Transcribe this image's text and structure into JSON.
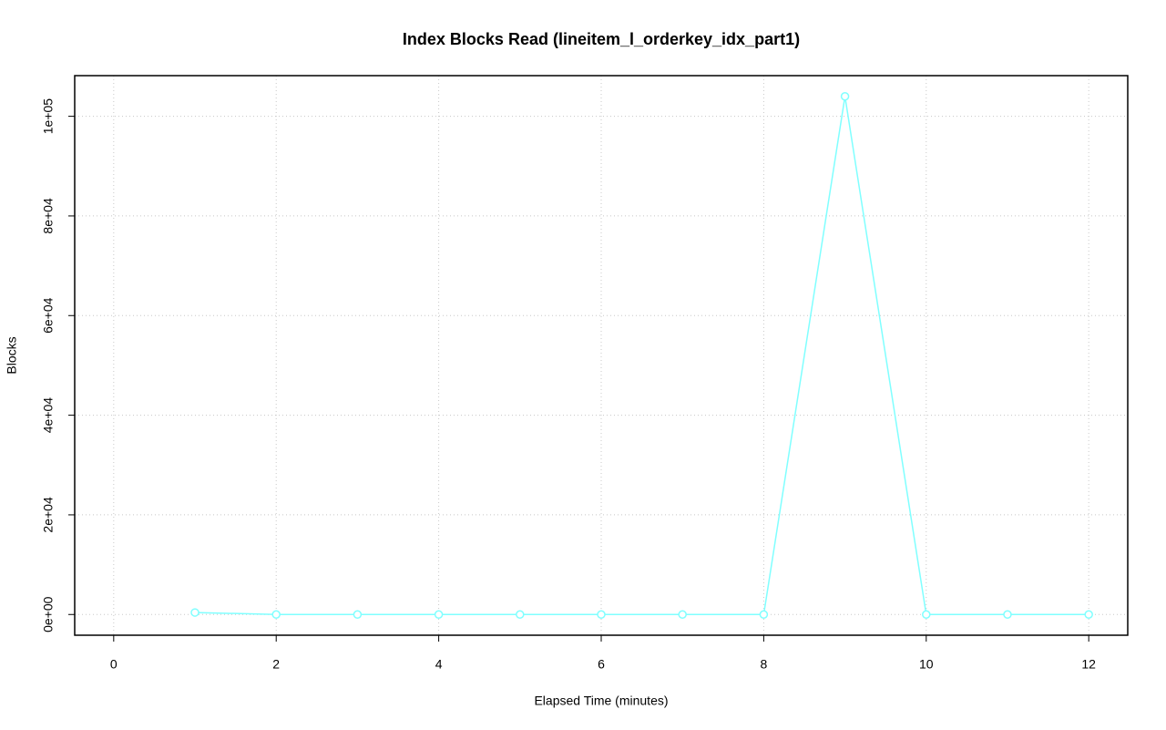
{
  "chart_data": {
    "type": "line",
    "title": "Index Blocks Read (lineitem_l_orderkey_idx_part1)",
    "x_label": "Elapsed Time (minutes)",
    "y_label": "Blocks",
    "x": [
      1,
      2,
      3,
      4,
      5,
      6,
      7,
      8,
      9,
      10,
      11,
      12
    ],
    "series": [
      {
        "name": "lineitem_l_orderkey_idx_part1",
        "color": "#80ffff",
        "values": [
          400,
          0,
          0,
          0,
          0,
          0,
          0,
          0,
          104000,
          0,
          0,
          0
        ]
      }
    ],
    "xlim": [
      -0.48,
      12.48
    ],
    "xticks": [
      0,
      2,
      4,
      6,
      8,
      10,
      12
    ],
    "ylim": [
      -4160,
      108160
    ],
    "yticks": [
      {
        "value": 0,
        "label": "0e+00"
      },
      {
        "value": 20000,
        "label": "2e+04"
      },
      {
        "value": 40000,
        "label": "4e+04"
      },
      {
        "value": 60000,
        "label": "6e+04"
      },
      {
        "value": 80000,
        "label": "8e+04"
      },
      {
        "value": 100000,
        "label": "1e+05"
      }
    ],
    "grid": true
  }
}
